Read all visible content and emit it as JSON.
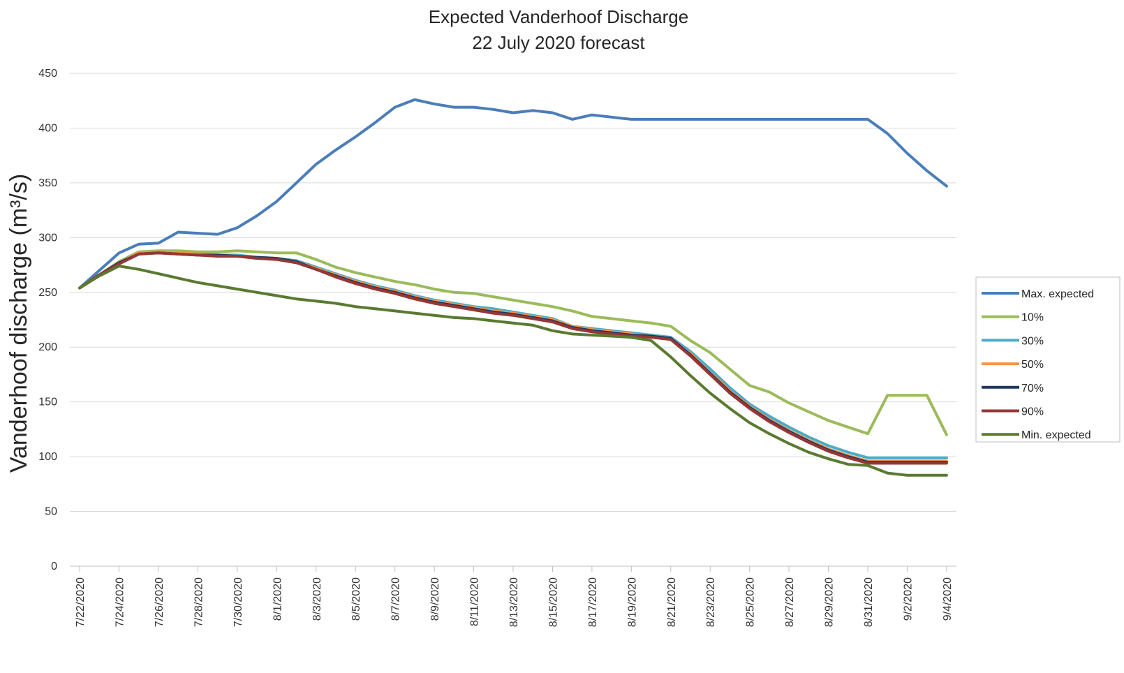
{
  "chart_data": {
    "type": "line",
    "title": "Expected Vanderhoof Discharge",
    "subtitle": "22 July 2020 forecast",
    "xlabel": "",
    "ylabel": "Vanderhoof discharge (m³/s)",
    "ylim": [
      0,
      450
    ],
    "yticks": [
      0,
      50,
      100,
      150,
      200,
      250,
      300,
      350,
      400,
      450
    ],
    "grid": true,
    "legend_position": "right",
    "x": [
      "7/22/2020",
      "7/23/2020",
      "7/24/2020",
      "7/25/2020",
      "7/26/2020",
      "7/27/2020",
      "7/28/2020",
      "7/29/2020",
      "7/30/2020",
      "7/31/2020",
      "8/1/2020",
      "8/2/2020",
      "8/3/2020",
      "8/4/2020",
      "8/5/2020",
      "8/6/2020",
      "8/7/2020",
      "8/8/2020",
      "8/9/2020",
      "8/10/2020",
      "8/11/2020",
      "8/12/2020",
      "8/13/2020",
      "8/14/2020",
      "8/15/2020",
      "8/16/2020",
      "8/17/2020",
      "8/18/2020",
      "8/19/2020",
      "8/20/2020",
      "8/21/2020",
      "8/22/2020",
      "8/23/2020",
      "8/24/2020",
      "8/25/2020",
      "8/26/2020",
      "8/27/2020",
      "8/28/2020",
      "8/29/2020",
      "8/30/2020",
      "8/31/2020",
      "9/1/2020",
      "9/2/2020",
      "9/3/2020",
      "9/4/2020"
    ],
    "xtick_labels": [
      "7/22/2020",
      "7/24/2020",
      "7/26/2020",
      "7/28/2020",
      "7/30/2020",
      "8/1/2020",
      "8/3/2020",
      "8/5/2020",
      "8/7/2020",
      "8/9/2020",
      "8/11/2020",
      "8/13/2020",
      "8/15/2020",
      "8/17/2020",
      "8/19/2020",
      "8/21/2020",
      "8/23/2020",
      "8/25/2020",
      "8/27/2020",
      "8/29/2020",
      "8/31/2020",
      "9/2/2020",
      "9/4/2020"
    ],
    "series": [
      {
        "name": "Max. expected",
        "color": "#4a7ebb",
        "values": [
          254,
          270,
          286,
          294,
          295,
          305,
          304,
          303,
          309,
          320,
          333,
          350,
          367,
          380,
          392,
          405,
          419,
          426,
          422,
          419,
          419,
          417,
          414,
          416,
          414,
          408,
          412,
          410,
          408,
          408,
          408,
          408,
          408,
          408,
          408,
          408,
          408,
          408,
          408,
          408,
          408,
          395,
          377,
          361,
          347
        ]
      },
      {
        "name": "10%",
        "color": "#9bbb59",
        "values": [
          254,
          266,
          278,
          287,
          288,
          288,
          287,
          287,
          288,
          287,
          286,
          286,
          280,
          273,
          268,
          264,
          260,
          257,
          253,
          250,
          249,
          246,
          243,
          240,
          237,
          233,
          228,
          226,
          224,
          222,
          219,
          206,
          195,
          180,
          165,
          159,
          149,
          141,
          133,
          127,
          121,
          156,
          156,
          156,
          120
        ]
      },
      {
        "name": "30%",
        "color": "#4bacc6",
        "values": [
          254,
          266,
          277,
          286,
          287,
          286,
          285,
          284,
          284,
          282,
          281,
          279,
          273,
          267,
          261,
          256,
          252,
          247,
          243,
          240,
          237,
          235,
          232,
          229,
          226,
          219,
          217,
          215,
          213,
          211,
          209,
          196,
          180,
          163,
          148,
          137,
          127,
          118,
          110,
          104,
          99,
          99,
          99,
          99,
          99
        ]
      },
      {
        "name": "50%",
        "color": "#f79646",
        "values": [
          254,
          266,
          277,
          286,
          287,
          286,
          285,
          284,
          283,
          282,
          281,
          278,
          272,
          266,
          260,
          255,
          251,
          246,
          242,
          239,
          236,
          233,
          231,
          228,
          225,
          219,
          216,
          214,
          212,
          210,
          208,
          194,
          177,
          160,
          146,
          134,
          124,
          115,
          107,
          101,
          96,
          96,
          96,
          96,
          96
        ]
      },
      {
        "name": "70%",
        "color": "#1f3864",
        "values": [
          254,
          266,
          277,
          285,
          286,
          285,
          284,
          284,
          283,
          282,
          281,
          278,
          271,
          265,
          259,
          254,
          250,
          245,
          241,
          238,
          235,
          232,
          230,
          227,
          224,
          218,
          215,
          213,
          211,
          210,
          208,
          193,
          176,
          159,
          145,
          133,
          123,
          114,
          106,
          100,
          95,
          95,
          95,
          95,
          95
        ]
      },
      {
        "name": "90%",
        "color": "#953735",
        "values": [
          254,
          266,
          276,
          285,
          286,
          285,
          284,
          283,
          283,
          281,
          280,
          277,
          271,
          264,
          258,
          253,
          249,
          244,
          240,
          237,
          234,
          231,
          229,
          226,
          223,
          217,
          214,
          212,
          210,
          209,
          207,
          192,
          175,
          158,
          144,
          132,
          122,
          113,
          105,
          99,
          94,
          94,
          94,
          94,
          94
        ]
      },
      {
        "name": "Min. expected",
        "color": "#5a7a30",
        "values": [
          254,
          265,
          274,
          271,
          267,
          263,
          259,
          256,
          253,
          250,
          247,
          244,
          242,
          240,
          237,
          235,
          233,
          231,
          229,
          227,
          226,
          224,
          222,
          220,
          215,
          212,
          211,
          210,
          209,
          206,
          191,
          174,
          158,
          144,
          131,
          121,
          112,
          104,
          98,
          93,
          92,
          85,
          83,
          83,
          83
        ]
      }
    ]
  }
}
